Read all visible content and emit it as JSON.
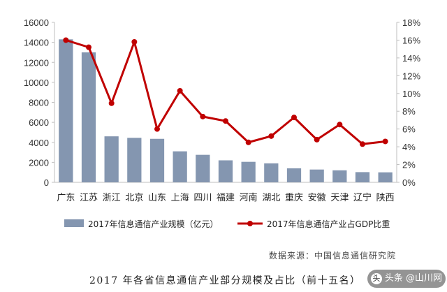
{
  "chart_data": {
    "type": "bar+line",
    "categories": [
      "广东",
      "江苏",
      "浙江",
      "北京",
      "山东",
      "上海",
      "四川",
      "福建",
      "河南",
      "湖北",
      "重庆",
      "安徽",
      "天津",
      "辽宁",
      "陕西"
    ],
    "series": [
      {
        "name": "2017年信息通信产业规模（亿元）",
        "type": "bar",
        "axis": "left",
        "color": "#8496b0",
        "values": [
          14300,
          13000,
          4600,
          4450,
          4350,
          3100,
          2750,
          2200,
          2050,
          1900,
          1400,
          1280,
          1200,
          1020,
          1000
        ]
      },
      {
        "name": "2017年信息通信产业占GDP比重",
        "type": "line",
        "axis": "right",
        "color": "#c00000",
        "values": [
          16.0,
          15.2,
          8.9,
          15.8,
          6.0,
          10.3,
          7.4,
          6.9,
          4.5,
          5.2,
          7.3,
          4.8,
          6.5,
          4.3,
          4.6
        ]
      }
    ],
    "y_left": {
      "min": 0,
      "max": 16000,
      "ticks": [
        "0",
        "2000",
        "4000",
        "6000",
        "8000",
        "10000",
        "12000",
        "14000",
        "16000"
      ]
    },
    "y_right": {
      "min": 0,
      "max": 18,
      "ticks": [
        "0%",
        "2%",
        "4%",
        "6%",
        "8%",
        "10%",
        "12%",
        "14%",
        "16%",
        "18%"
      ]
    },
    "grid": false,
    "legend_position": "bottom"
  },
  "source": "数据来源：中国信息通信研究院",
  "caption": "2017 年各省信息通信产业部分规模及占比（前十五名）",
  "watermark": "头条 @山川网"
}
